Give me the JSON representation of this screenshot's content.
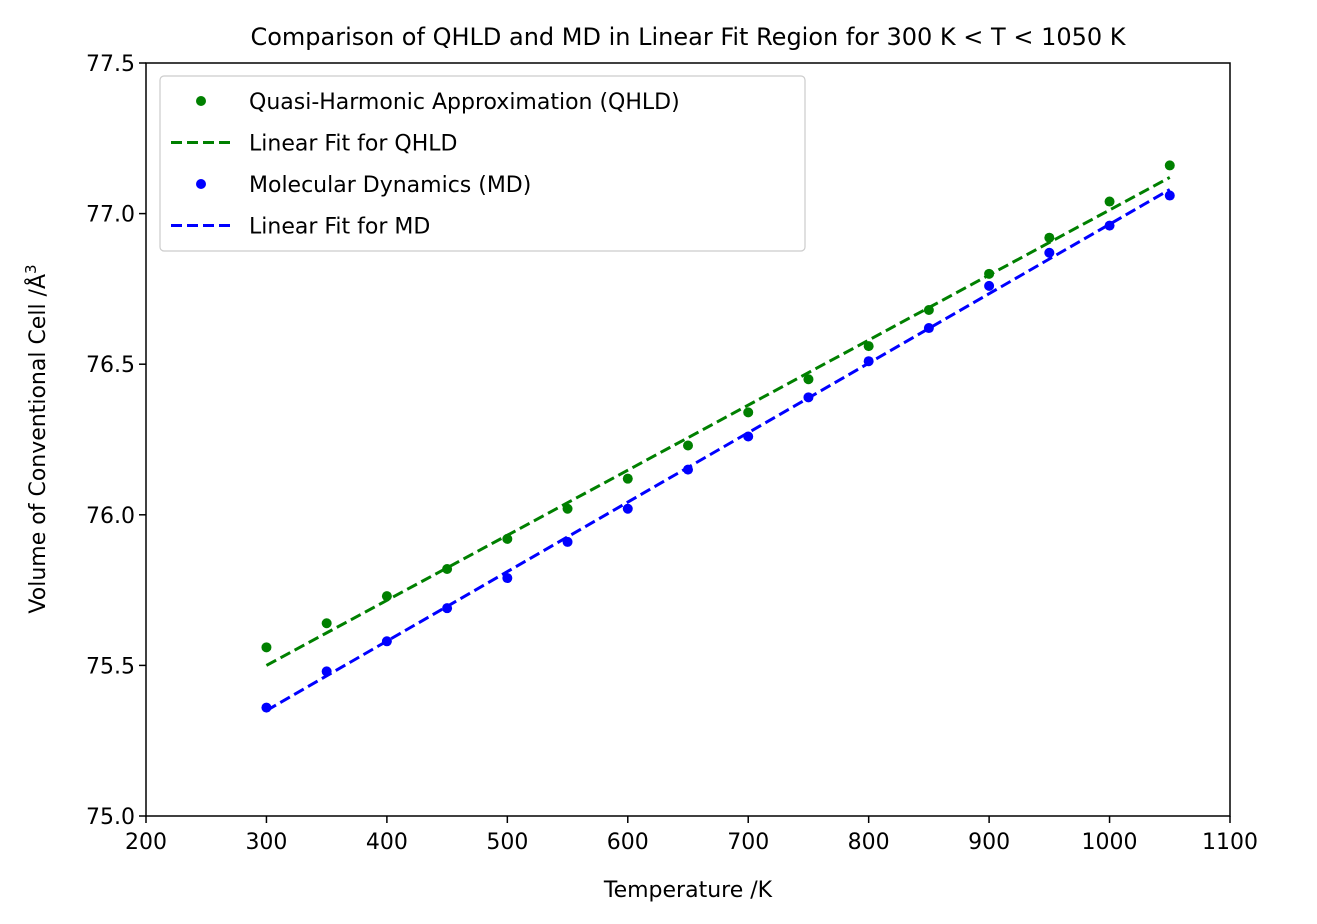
{
  "chart_data": {
    "type": "scatter",
    "title": "Comparison of QHLD and MD in Linear Fit Region for 300 K < T < 1050 K",
    "xlabel": "Temperature /K",
    "ylabel": "Volume of Conventional Cell /Å",
    "ylabel_superscript": "3",
    "xlim": [
      200,
      1100
    ],
    "ylim": [
      75.0,
      77.5
    ],
    "xticks": [
      200,
      300,
      400,
      500,
      600,
      700,
      800,
      900,
      1000,
      1100
    ],
    "xtick_labels": [
      "200",
      "300",
      "400",
      "500",
      "600",
      "700",
      "800",
      "900",
      "1000",
      "1100"
    ],
    "yticks": [
      75.0,
      75.5,
      76.0,
      76.5,
      77.0,
      77.5
    ],
    "ytick_labels": [
      "75.0",
      "75.5",
      "76.0",
      "76.5",
      "77.0",
      "77.5"
    ],
    "grid": false,
    "legend_position": "top-left",
    "x": [
      300,
      350,
      400,
      450,
      500,
      550,
      600,
      650,
      700,
      750,
      800,
      850,
      900,
      950,
      1000,
      1050
    ],
    "series": [
      {
        "name": "Quasi-Harmonic Approximation (QHLD)",
        "kind": "scatter",
        "color": "#008000",
        "values": [
          75.56,
          75.64,
          75.73,
          75.82,
          75.92,
          76.02,
          76.12,
          76.23,
          76.34,
          76.45,
          76.56,
          76.68,
          76.8,
          76.92,
          77.04,
          77.16
        ]
      },
      {
        "name": "Linear Fit for QHLD",
        "kind": "line",
        "style": "dashed",
        "color": "#008000",
        "x": [
          300,
          1050
        ],
        "values": [
          75.5,
          77.12
        ]
      },
      {
        "name": "Molecular Dynamics (MD)",
        "kind": "scatter",
        "color": "#0000ff",
        "values": [
          75.36,
          75.48,
          75.58,
          75.69,
          75.79,
          75.91,
          76.02,
          76.15,
          76.26,
          76.39,
          76.51,
          76.62,
          76.76,
          76.87,
          76.96,
          77.06
        ]
      },
      {
        "name": "Linear Fit for MD",
        "kind": "line",
        "style": "dashed",
        "color": "#0000ff",
        "x": [
          300,
          1050
        ],
        "values": [
          75.35,
          77.08
        ]
      }
    ]
  }
}
